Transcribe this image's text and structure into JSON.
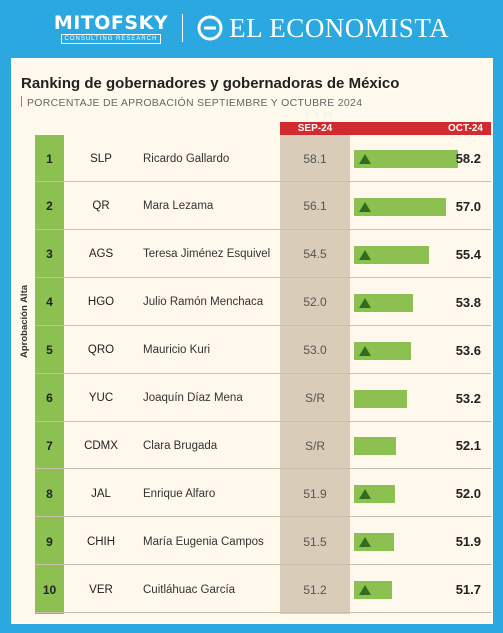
{
  "header": {
    "brand_left": "MITOFSKY",
    "brand_left_sub": "CONSULTING RESEARCH",
    "brand_right": "EL ECONOMISTA"
  },
  "title": "Ranking de gobernadores y gobernadoras de México",
  "subtitle": "PORCENTAJE DE APROBACIÓN SEPTIEMBRE Y OCTUBRE 2024",
  "side_label": "Aprobación Alta",
  "colors": {
    "background": "#2ba8e0",
    "panel": "#fff8ec",
    "header_red": "#d12a2f",
    "green": "#8cc152",
    "arrow": "#2f6e1b",
    "sep_column": "#d9cdb9"
  },
  "chart_data": {
    "type": "bar",
    "columns": [
      "SEP-24",
      "OCT-24"
    ],
    "rows": [
      {
        "rank": "1",
        "state": "SLP",
        "governor": "Ricardo Gallardo",
        "sep": "58.1",
        "oct": "58.2",
        "oct_value": 58.2,
        "trend": "up"
      },
      {
        "rank": "2",
        "state": "QR",
        "governor": "Mara Lezama",
        "sep": "56.1",
        "oct": "57.0",
        "oct_value": 57.0,
        "trend": "up"
      },
      {
        "rank": "3",
        "state": "AGS",
        "governor": "Teresa Jiménez Esquivel",
        "sep": "54.5",
        "oct": "55.4",
        "oct_value": 55.4,
        "trend": "up"
      },
      {
        "rank": "4",
        "state": "HGO",
        "governor": "Julio Ramón Menchaca",
        "sep": "52.0",
        "oct": "53.8",
        "oct_value": 53.8,
        "trend": "up"
      },
      {
        "rank": "5",
        "state": "QRO",
        "governor": "Mauricio Kuri",
        "sep": "53.0",
        "oct": "53.6",
        "oct_value": 53.6,
        "trend": "up"
      },
      {
        "rank": "6",
        "state": "YUC",
        "governor": "Joaquín Díaz Mena",
        "sep": "S/R",
        "oct": "53.2",
        "oct_value": 53.2,
        "trend": "none"
      },
      {
        "rank": "7",
        "state": "CDMX",
        "governor": "Clara Brugada",
        "sep": "S/R",
        "oct": "52.1",
        "oct_value": 52.1,
        "trend": "none"
      },
      {
        "rank": "8",
        "state": "JAL",
        "governor": "Enrique Alfaro",
        "sep": "51.9",
        "oct": "52.0",
        "oct_value": 52.0,
        "trend": "up"
      },
      {
        "rank": "9",
        "state": "CHIH",
        "governor": "María Eugenia Campos",
        "sep": "51.5",
        "oct": "51.9",
        "oct_value": 51.9,
        "trend": "up"
      },
      {
        "rank": "10",
        "state": "VER",
        "governor": "Cuitláhuac García",
        "sep": "51.2",
        "oct": "51.7",
        "oct_value": 51.7,
        "trend": "up"
      }
    ]
  }
}
